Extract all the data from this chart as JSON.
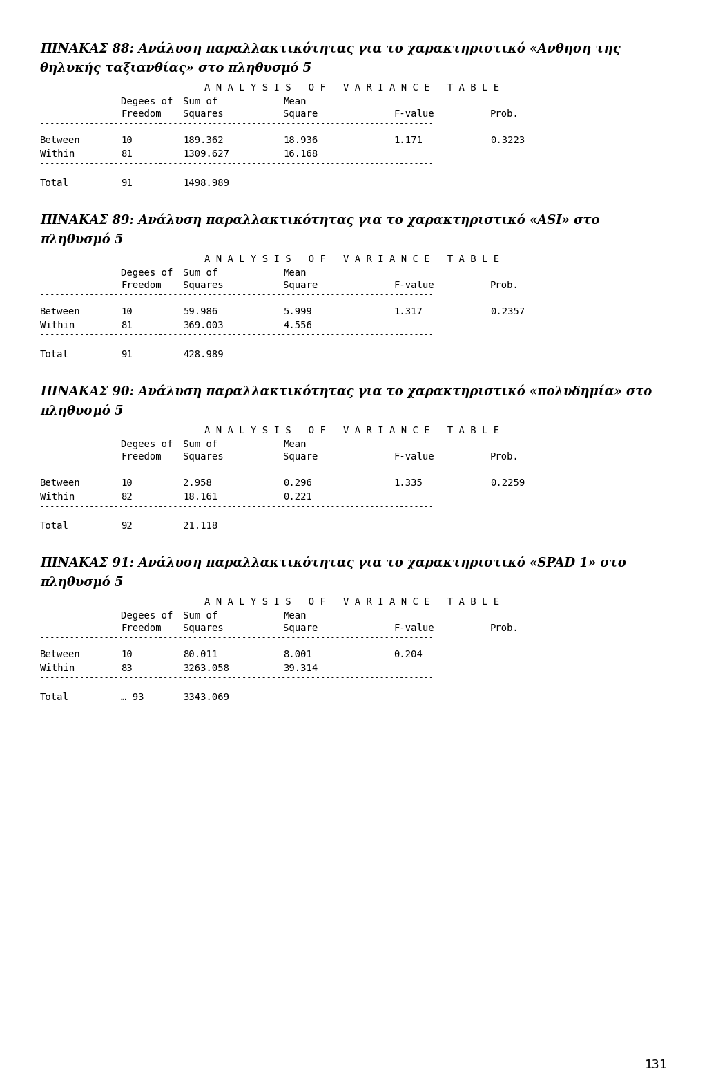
{
  "bg_color": "#ffffff",
  "text_color": "#000000",
  "page_number": "131",
  "fig_width": 10.24,
  "fig_height": 15.7,
  "tables": [
    {
      "title_line1": "ΠΙΝΑΚΑΣ 88: Ανάλυση παραλλακτικότητας για το χαρακτηριστικό «Ανθηση της",
      "title_line2": "θηλυκής ταξιανθίας» στο πληθυσμό 5",
      "between_df": "10",
      "between_ss": "189.362",
      "between_ms": "18.936",
      "between_f": "1.171",
      "between_p": "0.3223",
      "within_df": "81",
      "within_ss": "1309.627",
      "within_ms": "16.168",
      "total_df": "91",
      "total_ss": "1498.989"
    },
    {
      "title_line1": "ΠΙΝΑΚΑΣ 89: Ανάλυση παραλλακτικότητας για το χαρακτηριστικό «ASI» στο",
      "title_line2": "πληθυσμό 5",
      "between_df": "10",
      "between_ss": "59.986",
      "between_ms": "5.999",
      "between_f": "1.317",
      "between_p": "0.2357",
      "within_df": "81",
      "within_ss": "369.003",
      "within_ms": "4.556",
      "total_df": "91",
      "total_ss": "428.989"
    },
    {
      "title_line1": "ΠΙΝΑΚΑΣ 90: Ανάλυση παραλλακτικότητας για το χαρακτηριστικό «πολυδημία» στο",
      "title_line2": "πληθυσμό 5",
      "between_df": "10",
      "between_ss": "2.958",
      "between_ms": "0.296",
      "between_f": "1.335",
      "between_p": "0.2259",
      "within_df": "82",
      "within_ss": "18.161",
      "within_ms": "0.221",
      "total_df": "92",
      "total_ss": "21.118"
    },
    {
      "title_line1": "ΠΙΝΑΚΑΣ 91: Ανάλυση παραλλακτικότητας για το χαρακτηριστικό «SPAD 1» στο",
      "title_line2": "πληθυσμό 5",
      "between_df": "10",
      "between_ss": "80.011",
      "between_ms": "8.001",
      "between_f": "0.204",
      "between_p": "",
      "within_df": "83",
      "within_ss": "3263.058",
      "within_ms": "39.314",
      "total_df": "… 93",
      "total_ss": "3343.069"
    }
  ]
}
